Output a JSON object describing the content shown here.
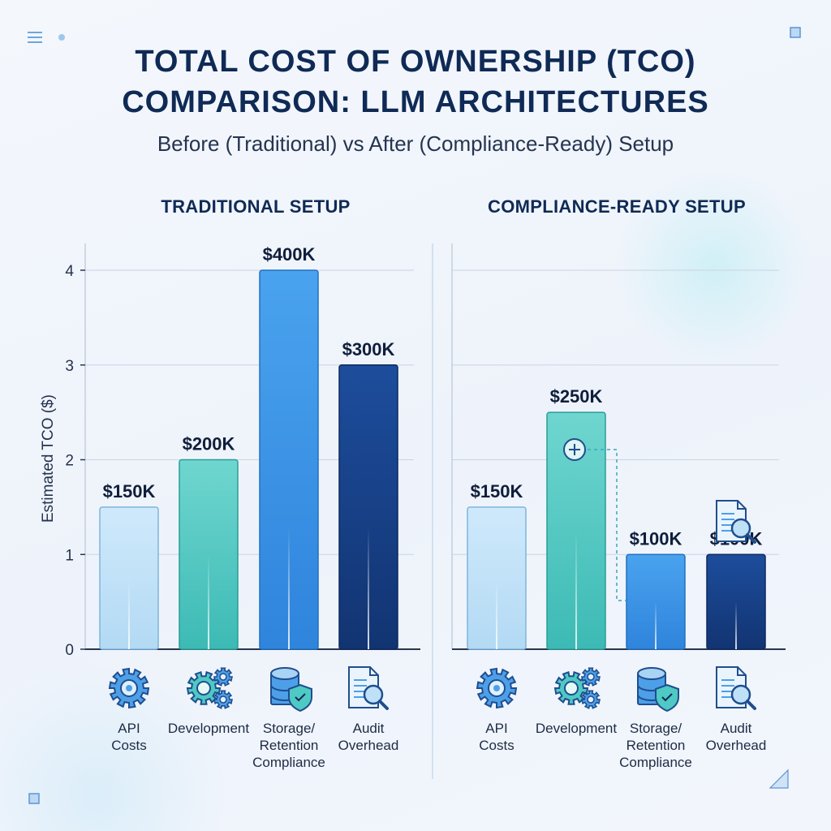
{
  "title_line1": "TOTAL COST OF OWNERSHIP (TCO)",
  "title_line2": "COMPARISON: LLM ARCHITECTURES",
  "subtitle": "Before (Traditional) vs After (Compliance-Ready) Setup",
  "colors": {
    "api": "#bfe1f7",
    "development": "#4fc9c3",
    "storage": "#3b94e6",
    "audit": "#173e86",
    "title": "#0f2a55",
    "axis": "#2a3550",
    "icon": "#2a84d8"
  },
  "chart_data": [
    {
      "type": "bar",
      "title": "TRADITIONAL SETUP",
      "ylabel": "Estimated TCO ($)",
      "ylim": [
        0,
        4
      ],
      "yticks": [
        "0",
        "1",
        "2",
        "3",
        "4"
      ],
      "categories": [
        "API Costs",
        "Development",
        "Storage/ Retention Compliance",
        "Audit Overhead"
      ],
      "values": [
        1.5,
        2.0,
        4.0,
        3.0
      ],
      "data_labels": [
        "$150K",
        "$200K",
        "$400K",
        "$300K"
      ],
      "icons": [
        "gear-icon",
        "gears-icon",
        "database-shield-icon",
        "document-search-icon"
      ],
      "grid": true
    },
    {
      "type": "bar",
      "title": "COMPLIANCE-READY SETUP",
      "ylim": [
        0,
        4
      ],
      "categories": [
        "API Costs",
        "Development",
        "Storage/ Retention Compliance",
        "Audit Overhead"
      ],
      "values": [
        1.5,
        2.5,
        1.0,
        1.0
      ],
      "data_labels": [
        "$150K",
        "$250K",
        "$100K",
        "$100K"
      ],
      "icons": [
        "gear-icon",
        "gears-icon",
        "database-shield-icon",
        "document-search-icon"
      ],
      "grid": true
    }
  ],
  "category_labels": [
    [
      "API",
      "Costs"
    ],
    [
      "Development"
    ],
    [
      "Storage/",
      "Retention",
      "Compliance"
    ],
    [
      "Audit",
      "Overhead"
    ]
  ]
}
